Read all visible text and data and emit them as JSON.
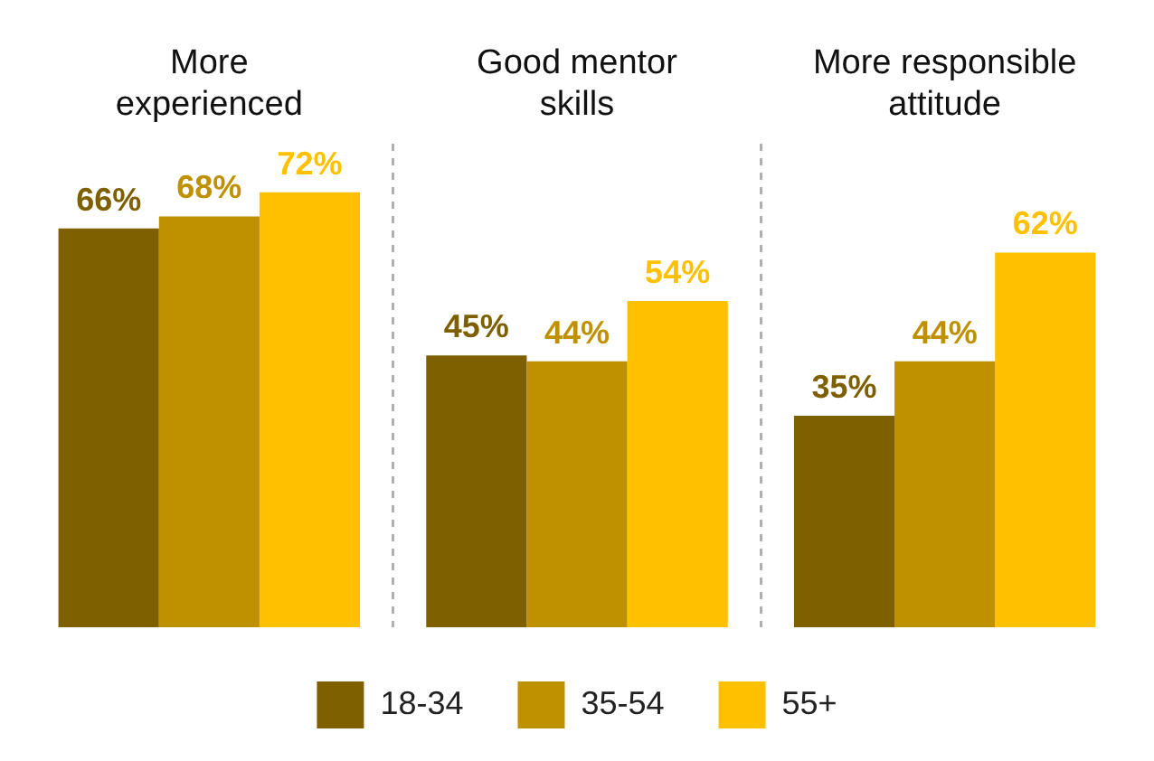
{
  "chart_data": {
    "type": "bar",
    "categories": [
      "More experienced",
      "Good mentor skills",
      "More responsible attitude"
    ],
    "series": [
      {
        "name": "18-34",
        "color": "#7f6000",
        "values": [
          66,
          45,
          35
        ],
        "value_labels": [
          "66%",
          "45%",
          "35%"
        ]
      },
      {
        "name": "35-54",
        "color": "#bf9000",
        "values": [
          68,
          44,
          44
        ],
        "value_labels": [
          "68%",
          "44%",
          "44%"
        ]
      },
      {
        "name": "55+",
        "color": "#ffc000",
        "values": [
          72,
          54,
          62
        ],
        "value_labels": [
          "72%",
          "54%",
          "62%"
        ]
      }
    ],
    "grid": "x",
    "legend": "bottom"
  }
}
